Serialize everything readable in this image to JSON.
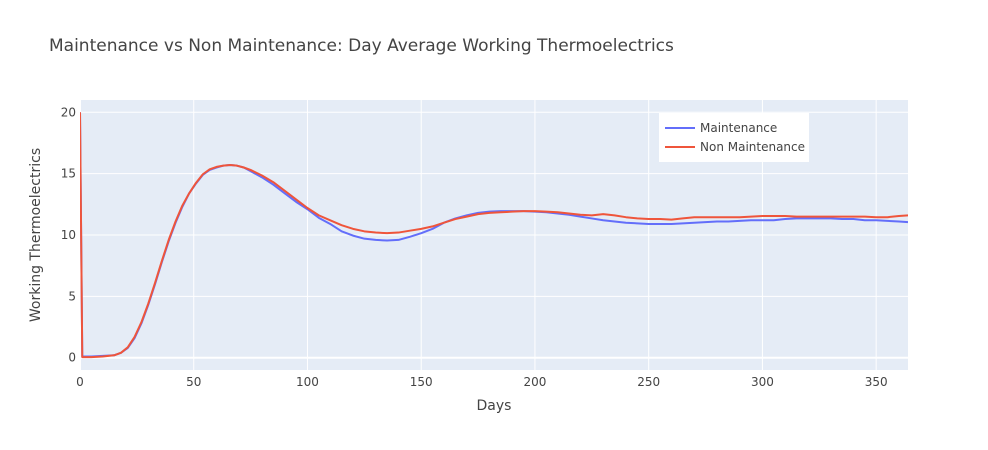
{
  "chart_data": {
    "type": "line",
    "title": "Maintenance vs Non Maintenance: Day Average Working Thermoelectrics",
    "xlabel": "Days",
    "ylabel": "Working Thermoelectrics",
    "xlim": [
      0,
      364
    ],
    "ylim": [
      -1,
      21
    ],
    "xticks": [
      0,
      50,
      100,
      150,
      200,
      250,
      300,
      350
    ],
    "yticks": [
      0,
      5,
      10,
      15,
      20
    ],
    "grid": true,
    "legend_position": "top-right",
    "plot_bg": "#e5ecf6",
    "series": [
      {
        "name": "Maintenance",
        "color": "#636efa",
        "x": [
          0,
          1,
          5,
          10,
          15,
          18,
          21,
          24,
          27,
          30,
          33,
          36,
          39,
          42,
          45,
          48,
          51,
          54,
          57,
          60,
          63,
          66,
          69,
          72,
          75,
          80,
          85,
          90,
          95,
          100,
          105,
          110,
          115,
          120,
          125,
          130,
          135,
          140,
          145,
          150,
          155,
          160,
          165,
          170,
          175,
          180,
          185,
          190,
          195,
          200,
          205,
          210,
          215,
          220,
          225,
          230,
          235,
          240,
          245,
          250,
          255,
          260,
          265,
          270,
          275,
          280,
          285,
          290,
          295,
          300,
          305,
          310,
          315,
          320,
          325,
          330,
          335,
          340,
          345,
          350,
          355,
          360,
          364
        ],
        "y": [
          20,
          0.1,
          0.1,
          0.15,
          0.2,
          0.4,
          0.8,
          1.6,
          2.8,
          4.3,
          6.0,
          7.8,
          9.5,
          11.0,
          12.3,
          13.4,
          14.2,
          14.9,
          15.3,
          15.5,
          15.65,
          15.7,
          15.65,
          15.5,
          15.2,
          14.7,
          14.1,
          13.4,
          12.7,
          12.1,
          11.4,
          10.9,
          10.3,
          9.95,
          9.7,
          9.6,
          9.55,
          9.6,
          9.85,
          10.15,
          10.5,
          11.0,
          11.35,
          11.6,
          11.8,
          11.9,
          11.95,
          11.95,
          11.95,
          11.9,
          11.85,
          11.75,
          11.65,
          11.5,
          11.35,
          11.2,
          11.1,
          11.0,
          10.95,
          10.9,
          10.9,
          10.9,
          10.95,
          11.0,
          11.05,
          11.1,
          11.1,
          11.15,
          11.2,
          11.2,
          11.2,
          11.3,
          11.35,
          11.35,
          11.35,
          11.35,
          11.3,
          11.3,
          11.2,
          11.2,
          11.15,
          11.1,
          11.05
        ]
      },
      {
        "name": "Non Maintenance",
        "color": "#ef553b",
        "x": [
          0,
          1,
          5,
          10,
          15,
          18,
          21,
          24,
          27,
          30,
          33,
          36,
          39,
          42,
          45,
          48,
          51,
          54,
          57,
          60,
          63,
          66,
          69,
          72,
          75,
          80,
          85,
          90,
          95,
          100,
          105,
          110,
          115,
          120,
          125,
          130,
          135,
          140,
          145,
          150,
          155,
          160,
          165,
          170,
          175,
          180,
          185,
          190,
          195,
          200,
          205,
          210,
          215,
          220,
          225,
          230,
          235,
          240,
          245,
          250,
          255,
          260,
          265,
          270,
          275,
          280,
          285,
          290,
          295,
          300,
          305,
          310,
          315,
          320,
          325,
          330,
          335,
          340,
          345,
          350,
          355,
          360,
          364
        ],
        "y": [
          20,
          0.05,
          0.05,
          0.1,
          0.2,
          0.4,
          0.85,
          1.7,
          2.9,
          4.4,
          6.1,
          7.9,
          9.6,
          11.1,
          12.4,
          13.4,
          14.25,
          14.95,
          15.35,
          15.55,
          15.65,
          15.7,
          15.65,
          15.5,
          15.3,
          14.85,
          14.3,
          13.6,
          12.9,
          12.2,
          11.6,
          11.2,
          10.8,
          10.5,
          10.3,
          10.2,
          10.15,
          10.2,
          10.35,
          10.5,
          10.7,
          11.0,
          11.3,
          11.5,
          11.7,
          11.8,
          11.85,
          11.9,
          11.95,
          11.95,
          11.9,
          11.85,
          11.75,
          11.65,
          11.6,
          11.7,
          11.6,
          11.45,
          11.35,
          11.3,
          11.3,
          11.25,
          11.35,
          11.45,
          11.45,
          11.45,
          11.45,
          11.45,
          11.5,
          11.55,
          11.55,
          11.55,
          11.5,
          11.5,
          11.5,
          11.5,
          11.5,
          11.5,
          11.5,
          11.45,
          11.45,
          11.55,
          11.6
        ]
      }
    ]
  }
}
